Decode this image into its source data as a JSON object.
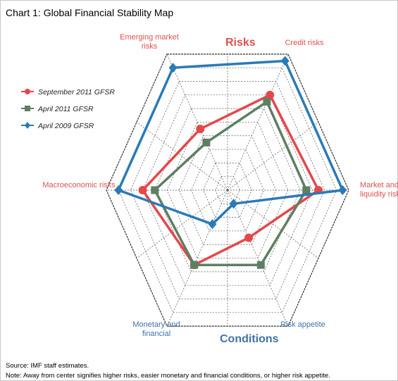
{
  "chart_data": {
    "type": "radar",
    "title": "Chart 1: Global Financial Stability Map",
    "categories": [
      "Emerging market risks",
      "Credit risks",
      "Market and liquidity risks",
      "Risk appetite",
      "Monetary and financial",
      "Macroeconomic risks"
    ],
    "group_labels": [
      "Risks",
      "Conditions"
    ],
    "series": [
      {
        "name": "September 2011 GFSR",
        "color": "#e5474b",
        "marker": "circle",
        "values": [
          4.5,
          7,
          7.5,
          3.5,
          5.5,
          7
        ]
      },
      {
        "name": "April 2011 GFSR",
        "color": "#5e7f62",
        "marker": "square",
        "values": [
          3.5,
          6.5,
          6.5,
          5.5,
          5.5,
          6
        ]
      },
      {
        "name": "April 2009 GFSR",
        "color": "#2a7ab8",
        "marker": "diamond",
        "values": [
          9,
          9.5,
          9.5,
          1,
          2.5,
          9
        ]
      }
    ],
    "rlim": [
      0,
      10
    ],
    "rticks": [
      1,
      2,
      3,
      4,
      5,
      6,
      7,
      8,
      9,
      10
    ],
    "grid": true,
    "legend": "upper left",
    "source": "Source: IMF staff estimates.",
    "note": "Note: Away from center signifies higher risks, easier monetary and financial conditions, or higher risk appetite."
  }
}
